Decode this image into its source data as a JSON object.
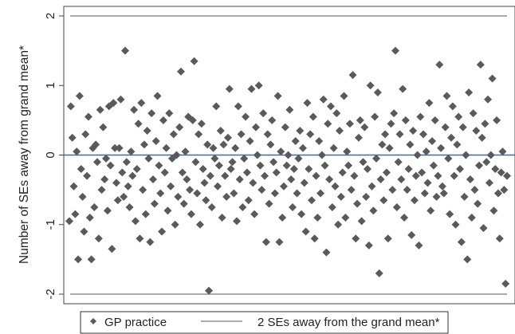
{
  "chart_data": {
    "type": "scatter",
    "title": "",
    "xlabel": "",
    "ylabel": "Number of SEs away from grand mean*",
    "ylim": [
      -2.05,
      2.05
    ],
    "yticks": [
      -2,
      -1,
      0,
      1,
      2
    ],
    "grid": false,
    "legend_position": "bottom",
    "series": [
      {
        "name": "GP practice",
        "color": "#5a5a5a",
        "marker": "diamond",
        "values": [
          -0.95,
          0.7,
          0.25,
          -0.45,
          -0.85,
          0.05,
          -1.5,
          0.85,
          -0.2,
          -0.6,
          -1.1,
          0.3,
          -0.3,
          0.55,
          -0.9,
          -1.5,
          0.1,
          -0.75,
          0.15,
          -0.1,
          -1.2,
          0.65,
          -0.5,
          0.4,
          -0.35,
          -0.05,
          -0.8,
          0.7,
          -0.15,
          -1.35,
          0.75,
          0.1,
          -0.4,
          -0.65,
          0.1,
          0.8,
          -0.25,
          -0.6,
          1.5,
          -0.1,
          -0.45,
          -0.75,
          0.05,
          -0.3,
          0.65,
          -0.95,
          -0.2,
          0.45,
          -1.2,
          0.75,
          -0.5,
          0.15,
          -0.85,
          0.35,
          -0.05,
          -1.25,
          0.6,
          -0.35,
          -0.7,
          0.2,
          0.85,
          -0.15,
          -0.55,
          -1.1,
          0.5,
          -0.25,
          0.1,
          -0.8,
          0.6,
          -0.45,
          -0.05,
          0.3,
          -1.0,
          0.0,
          -0.6,
          0.4,
          1.2,
          -0.25,
          -0.7,
          0.05,
          -0.35,
          0.55,
          -0.5,
          -0.85,
          0.5,
          1.35,
          -0.1,
          -0.55,
          0.3,
          -1.0,
          0.45,
          -0.2,
          -0.4,
          -0.65,
          0.15,
          -1.95,
          -0.3,
          -0.75,
          0.1,
          -0.05,
          0.7,
          -0.45,
          -0.15,
          0.35,
          -0.9,
          0.15,
          -0.3,
          -0.6,
          0.25,
          0.95,
          -0.2,
          -0.1,
          -0.55,
          0.1,
          -0.95,
          0.7,
          -0.35,
          0.3,
          -0.75,
          -0.05,
          0.55,
          -0.25,
          -0.65,
          0.2,
          0.95,
          -0.4,
          -0.85,
          0.4,
          0.0,
          1.0,
          -0.15,
          -0.5,
          0.6,
          -0.3,
          -1.25,
          0.3,
          -0.7,
          0.15,
          0.5,
          -0.1,
          -0.55,
          -0.25,
          0.85,
          -1.25,
          0.05,
          -0.9,
          -0.45,
          0.4,
          -0.15,
          0.0,
          0.65,
          -0.35,
          -0.75,
          -0.2,
          0.2,
          -0.55,
          -0.05,
          0.35,
          -0.85,
          0.1,
          -0.4,
          -1.1,
          0.75,
          -0.2,
          0.3,
          -0.65,
          0.55,
          -1.2,
          -0.3,
          -0.9,
          0.2,
          -0.55,
          0.0,
          0.8,
          -0.15,
          -1.4,
          0.45,
          -0.35,
          0.7,
          -0.75,
          0.1,
          -0.45,
          0.6,
          -1.0,
          0.35,
          -0.6,
          -0.25,
          0.85,
          -0.9,
          0.05,
          -0.15,
          0.45,
          -0.5,
          1.15,
          -0.3,
          -1.2,
          -0.7,
          0.25,
          0.5,
          -0.95,
          -0.1,
          0.4,
          -0.6,
          -0.2,
          -1.3,
          1.0,
          -0.45,
          -0.8,
          0.55,
          -0.05,
          0.9,
          -1.7,
          -0.35,
          0.15,
          -0.65,
          0.3,
          -0.25,
          -1.2,
          0.1,
          0.45,
          -0.5,
          0.6,
          1.5,
          -0.75,
          -0.1,
          0.3,
          -0.35,
          0.95,
          -0.9,
          0.5,
          -0.5,
          -0.2,
          0.15,
          -1.15,
          0.35,
          -0.65,
          -0.3,
          0.0,
          -1.3,
          0.55,
          -0.25,
          0.3,
          -0.55,
          0.05,
          -0.4,
          0.75,
          -0.8,
          0.2,
          -0.15,
          0.5,
          -0.6,
          -0.3,
          1.3,
          0.1,
          -0.45,
          -0.55,
          0.4,
          0.85,
          -0.05,
          -0.85,
          0.25,
          0.7,
          -0.3,
          -1.0,
          0.15,
          0.55,
          -0.2,
          -1.25,
          0.4,
          -0.6,
          0.0,
          -1.5,
          0.9,
          -0.35,
          -0.9,
          0.6,
          -0.5,
          0.35,
          -0.7,
          -0.15,
          1.3,
          0.25,
          -1.05,
          0.45,
          -0.1,
          0.8,
          -0.4,
          0.0,
          1.1,
          -0.8,
          -0.2,
          0.5,
          -0.55,
          -1.2,
          -0.25,
          0.05,
          -0.5,
          -1.85,
          -0.3
        ]
      }
    ],
    "reference_lines": [
      {
        "name": "2 SEs away from the grand mean*",
        "values": [
          -2,
          2
        ],
        "color": "#7a7a7a"
      },
      {
        "name": "",
        "values": [
          0
        ],
        "color": "#3a6e95"
      }
    ]
  },
  "legend": {
    "marker_label": "GP practice",
    "line_label": "2 SEs away from the grand mean*"
  }
}
